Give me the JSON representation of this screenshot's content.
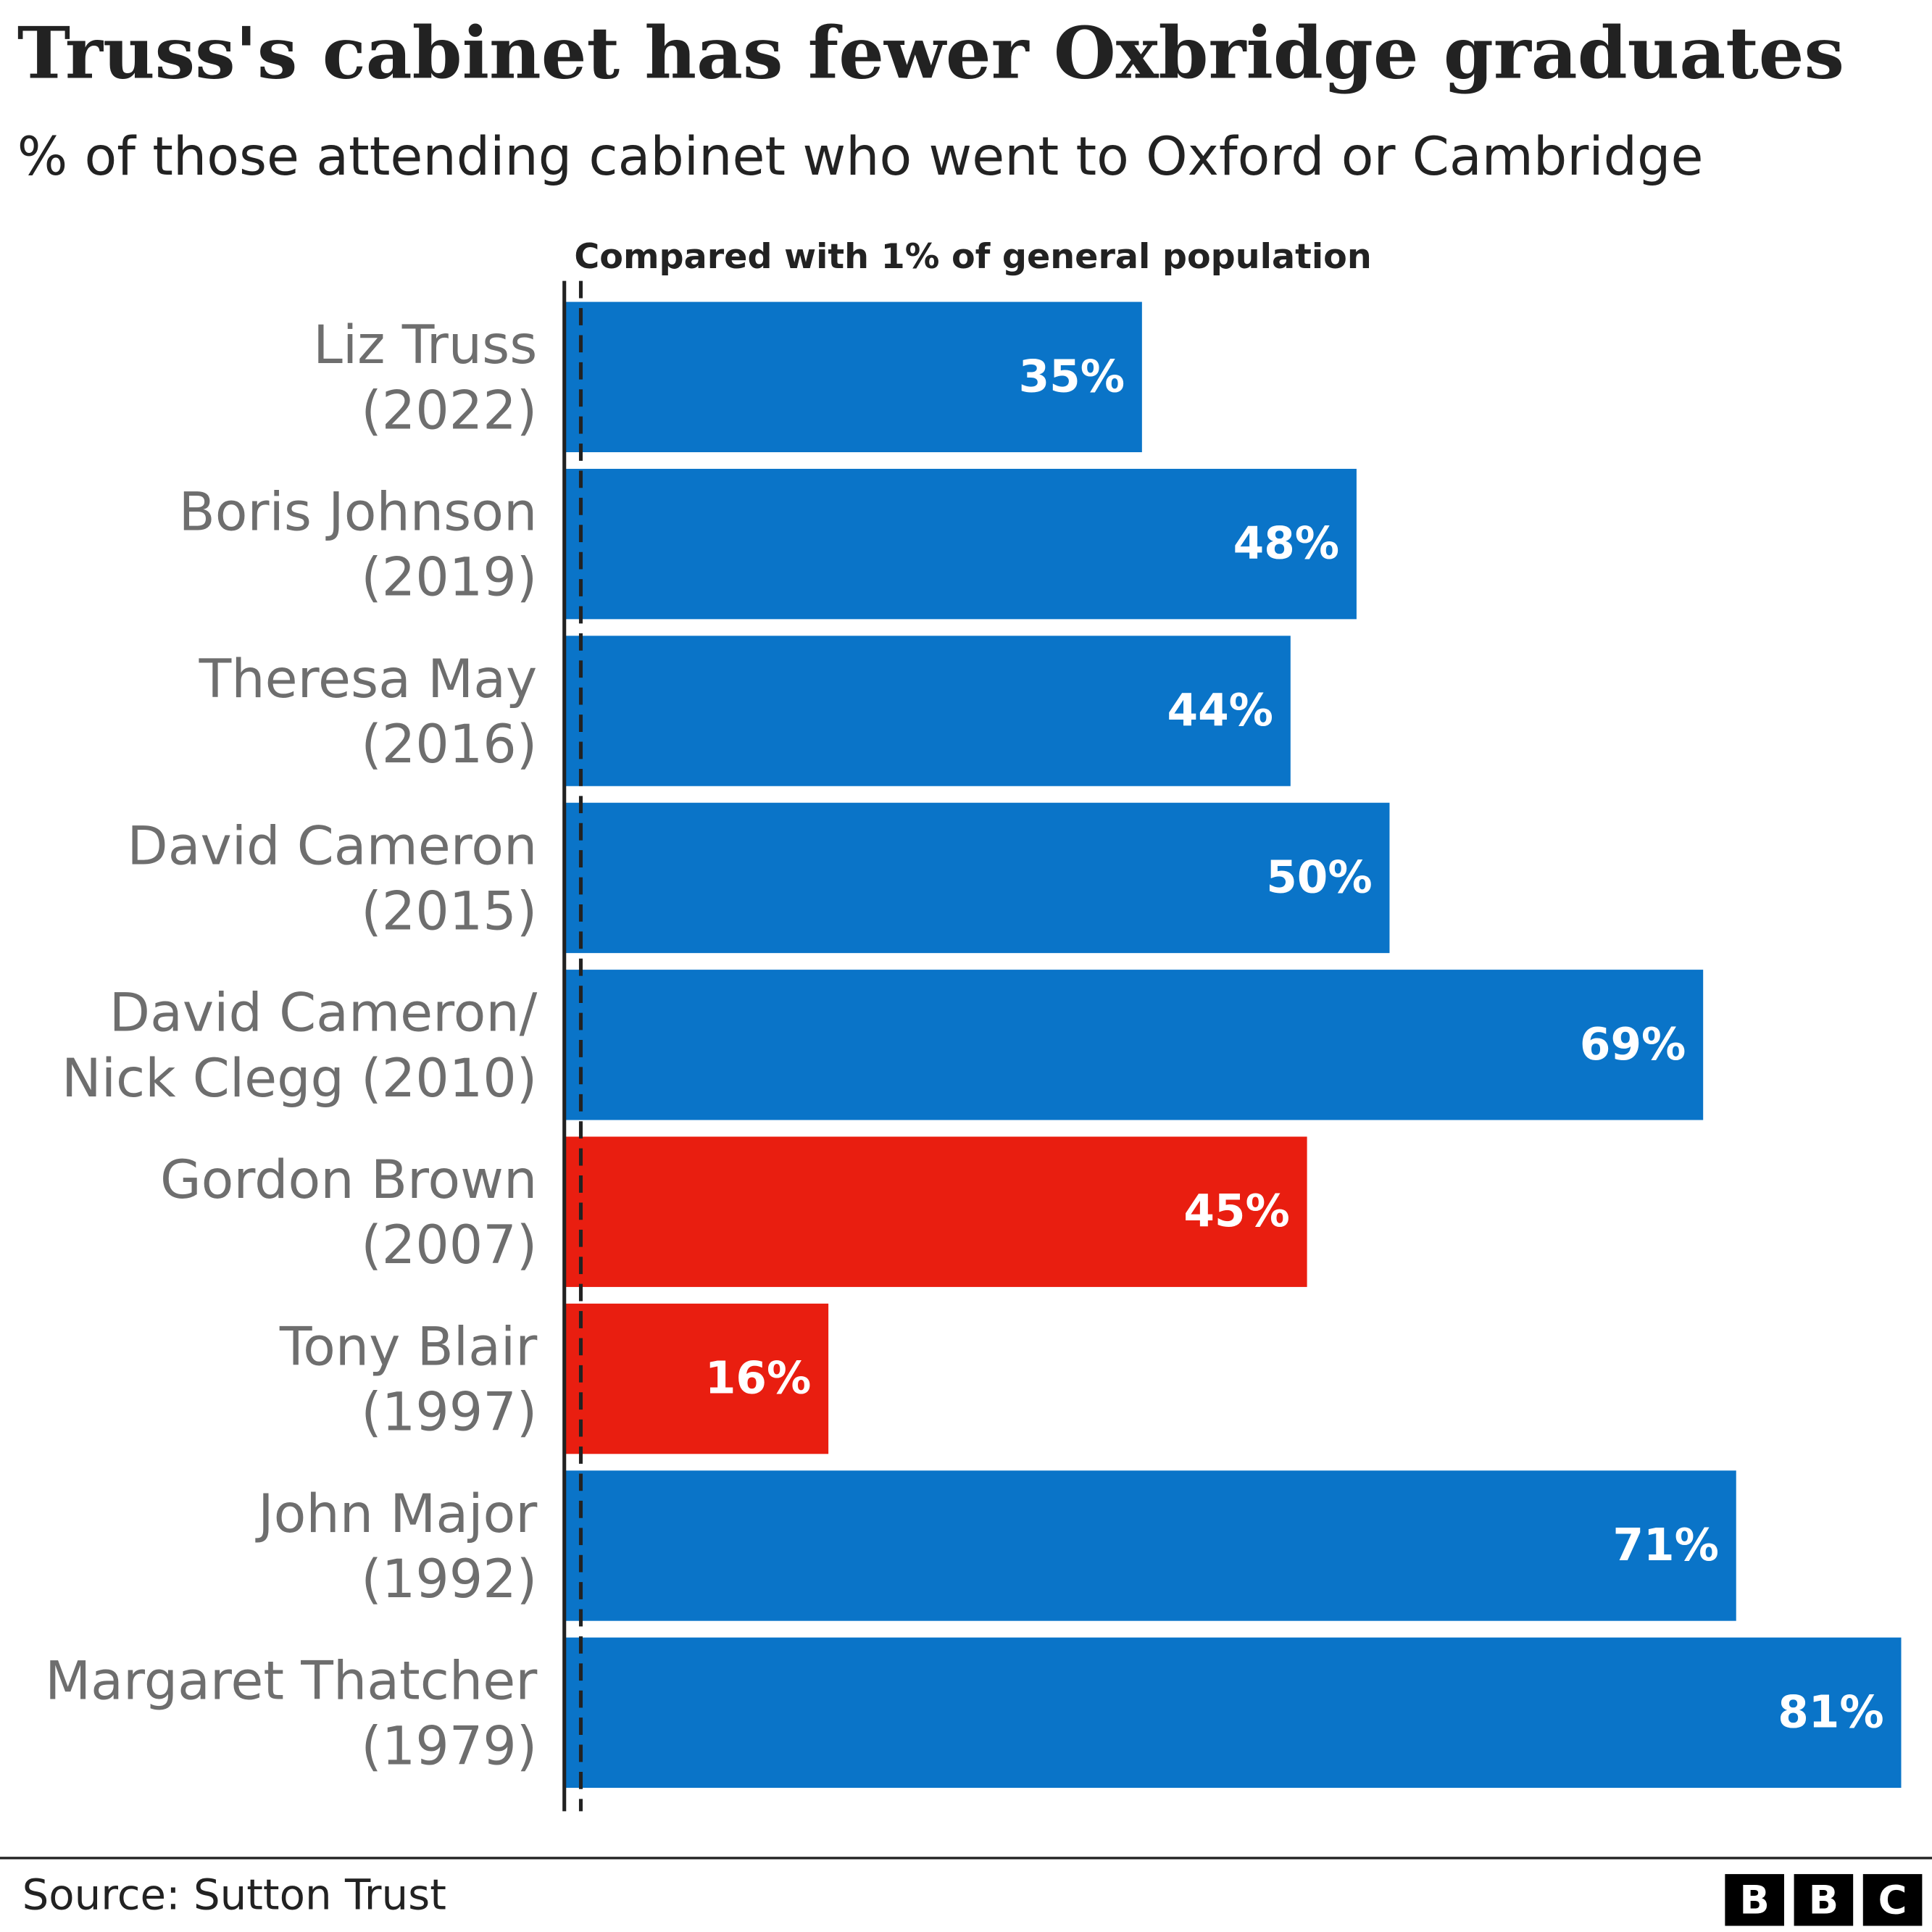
{
  "chart_data": {
    "type": "bar",
    "orientation": "horizontal",
    "title": "Truss's cabinet has fewer Oxbridge graduates",
    "subtitle": "% of those attending cabinet who went to Oxford or Cambridge",
    "categories": [
      [
        "Liz Truss",
        "(2022)"
      ],
      [
        "Boris Johnson",
        "(2019)"
      ],
      [
        "Theresa May",
        "(2016)"
      ],
      [
        "David Cameron",
        "(2015)"
      ],
      [
        "David Cameron/",
        "Nick Clegg (2010)"
      ],
      [
        "Gordon Brown",
        "(2007)"
      ],
      [
        "Tony Blair",
        "(1997)"
      ],
      [
        "John Major",
        "(1992)"
      ],
      [
        "Margaret Thatcher",
        "(1979)"
      ]
    ],
    "values": [
      35,
      48,
      44,
      50,
      69,
      45,
      16,
      71,
      81
    ],
    "value_labels": [
      "35%",
      "48%",
      "44%",
      "50%",
      "69%",
      "45%",
      "16%",
      "71%",
      "81%"
    ],
    "colors": [
      "#0a74c8",
      "#0a74c8",
      "#0a74c8",
      "#0a74c8",
      "#0a74c8",
      "#e91e10",
      "#e91e10",
      "#0a74c8",
      "#0a74c8"
    ],
    "xlim": [
      0,
      81
    ],
    "reference": {
      "value": 1,
      "label": "Compared with 1% of general population"
    },
    "source": "Source: Sutton Trust",
    "logo": [
      "B",
      "B",
      "C"
    ]
  }
}
